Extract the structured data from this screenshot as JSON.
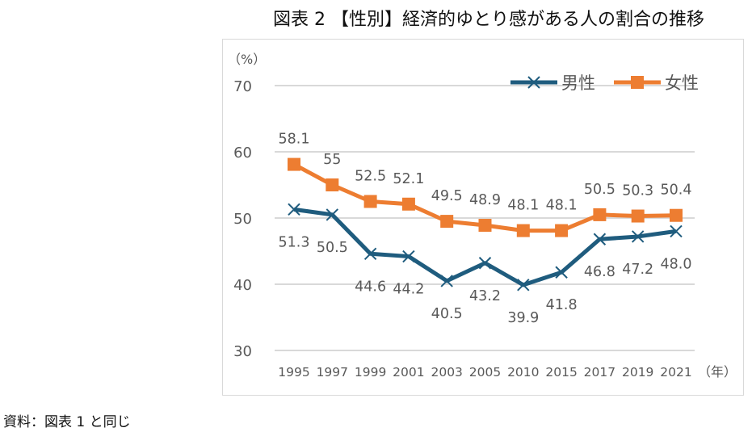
{
  "chart_data": {
    "type": "line",
    "title": "図表 2 【性別】経済的ゆとり感がある人の割合の推移",
    "ylabel": "（%）",
    "xlabel": "（年）",
    "categories": [
      "1995",
      "1997",
      "1999",
      "2001",
      "2003",
      "2005",
      "2010",
      "2015",
      "2017",
      "2019",
      "2021"
    ],
    "ylim": [
      30,
      70
    ],
    "yticks": [
      30,
      40,
      50,
      60,
      70
    ],
    "grid": true,
    "legend": "top-right",
    "series": [
      {
        "name": "男性",
        "color": "#1F5C7E",
        "marker": "x",
        "values": [
          51.3,
          50.5,
          44.6,
          44.2,
          40.5,
          43.2,
          39.9,
          41.8,
          46.8,
          47.2,
          48.0
        ],
        "labels": [
          "51.3",
          "50.5",
          "44.6",
          "44.2",
          "40.5",
          "43.2",
          "39.9",
          "41.8",
          "46.8",
          "47.2",
          "48.0"
        ]
      },
      {
        "name": "女性",
        "color": "#ED7D31",
        "marker": "square",
        "values": [
          58.1,
          55,
          52.5,
          52.1,
          49.5,
          48.9,
          48.1,
          48.1,
          50.5,
          50.3,
          50.4
        ],
        "labels": [
          "58.1",
          "55",
          "52.5",
          "52.1",
          "49.5",
          "48.9",
          "48.1",
          "48.1",
          "50.5",
          "50.3",
          "50.4"
        ]
      }
    ]
  },
  "source": "資料：図表 1 と同じ"
}
